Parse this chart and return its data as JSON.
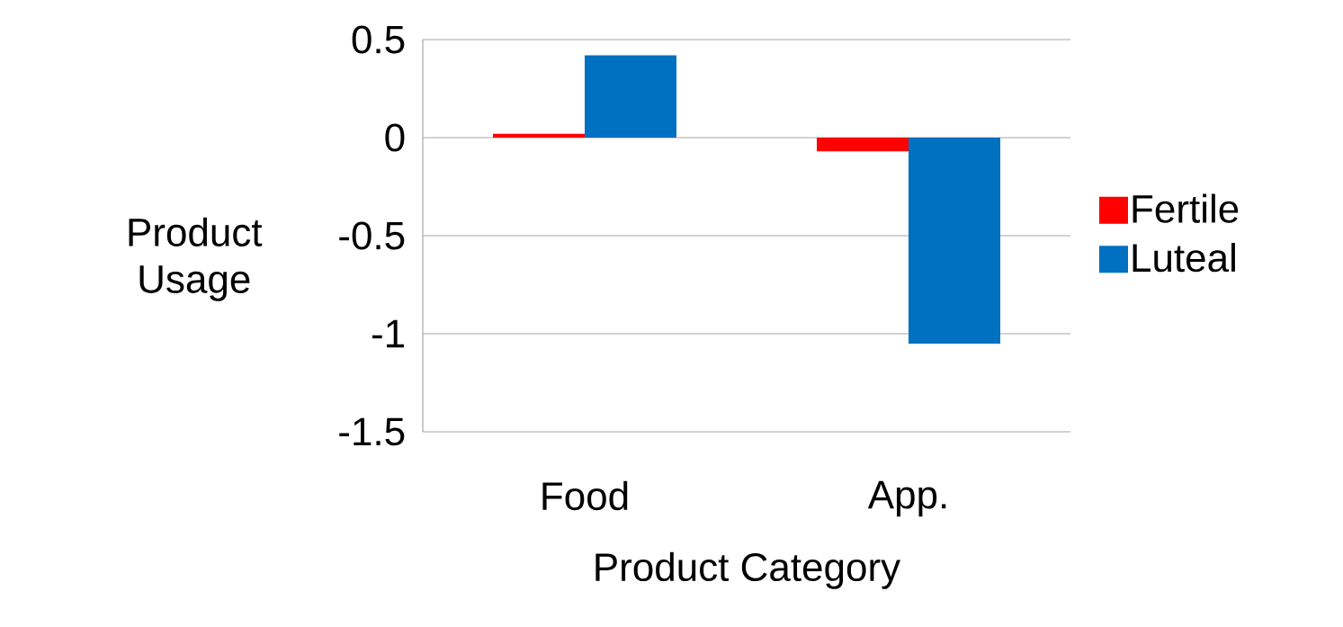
{
  "chart_data": {
    "type": "bar",
    "xlabel": "Product Category",
    "ylabel": "Product Usage",
    "categories": [
      "Food",
      "App."
    ],
    "series": [
      {
        "name": "Fertile",
        "color": "#ff0000",
        "values": [
          0.02,
          -0.07
        ]
      },
      {
        "name": "Luteal",
        "color": "#0070c0",
        "values": [
          0.42,
          -1.05
        ]
      }
    ],
    "ylim": [
      -1.5,
      0.5
    ],
    "yticks": [
      {
        "value": -1.5,
        "label": "-1.5"
      },
      {
        "value": -1,
        "label": "-1"
      },
      {
        "value": -0.5,
        "label": "-0.5"
      },
      {
        "value": 0,
        "label": "0"
      },
      {
        "value": 0.5,
        "label": "0.5"
      }
    ],
    "grid": "y",
    "legend": "right"
  }
}
